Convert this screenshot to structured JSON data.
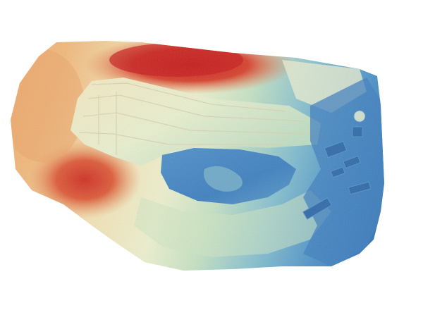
{
  "map": {
    "type": "digital-elevation-model",
    "rendering": "hillshaded-color-relief",
    "legend_visible": false,
    "text_labels": [],
    "color_ramp": [
      "#2f6fb5",
      "#4a90c6",
      "#7fbcd0",
      "#bfe0c4",
      "#eef2cf",
      "#f2e3b8",
      "#f1b677",
      "#e37c4d",
      "#cf3b2a",
      "#c81e1e"
    ],
    "background_color": "#ffffff",
    "features": [
      {
        "name": "quarry-pit-floor",
        "elevation_class": "low"
      },
      {
        "name": "quarry-benches",
        "elevation_class": "mid-high"
      },
      {
        "name": "northern-ridge",
        "elevation_class": "highest"
      },
      {
        "name": "western-hill",
        "elevation_class": "high"
      },
      {
        "name": "eastern-lowland",
        "elevation_class": "lowest"
      },
      {
        "name": "processing-plant-structures",
        "elevation_class": "low"
      }
    ]
  }
}
